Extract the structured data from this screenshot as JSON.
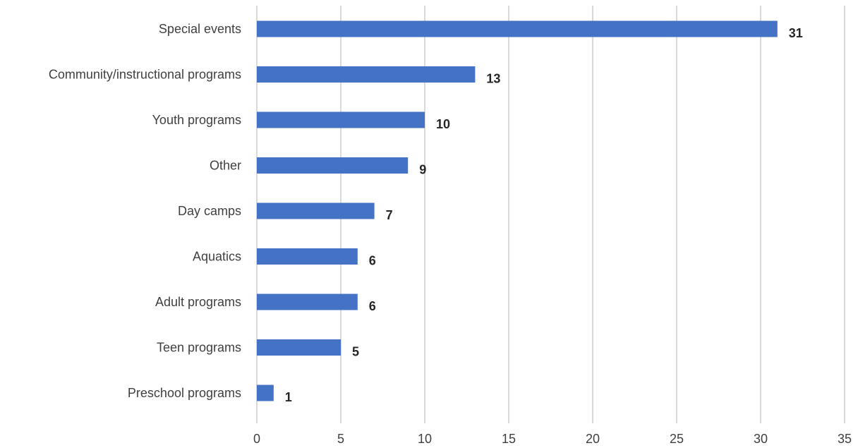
{
  "chart_data": {
    "type": "bar",
    "orientation": "horizontal",
    "title": "",
    "xlabel": "",
    "ylabel": "",
    "categories": [
      "Special events",
      "Community/instructional programs",
      "Youth programs",
      "Other",
      "Day camps",
      "Aquatics",
      "Adult programs",
      "Teen programs",
      "Preschool programs"
    ],
    "values": [
      31,
      13,
      10,
      9,
      7,
      6,
      6,
      5,
      1
    ],
    "xlim": [
      0,
      35
    ],
    "xticks": [
      0,
      5,
      10,
      15,
      20,
      25,
      30,
      35
    ],
    "grid": "vertical",
    "data_labels": true,
    "bar_color": "#4472C4",
    "grid_color": "#D9D9D9"
  }
}
